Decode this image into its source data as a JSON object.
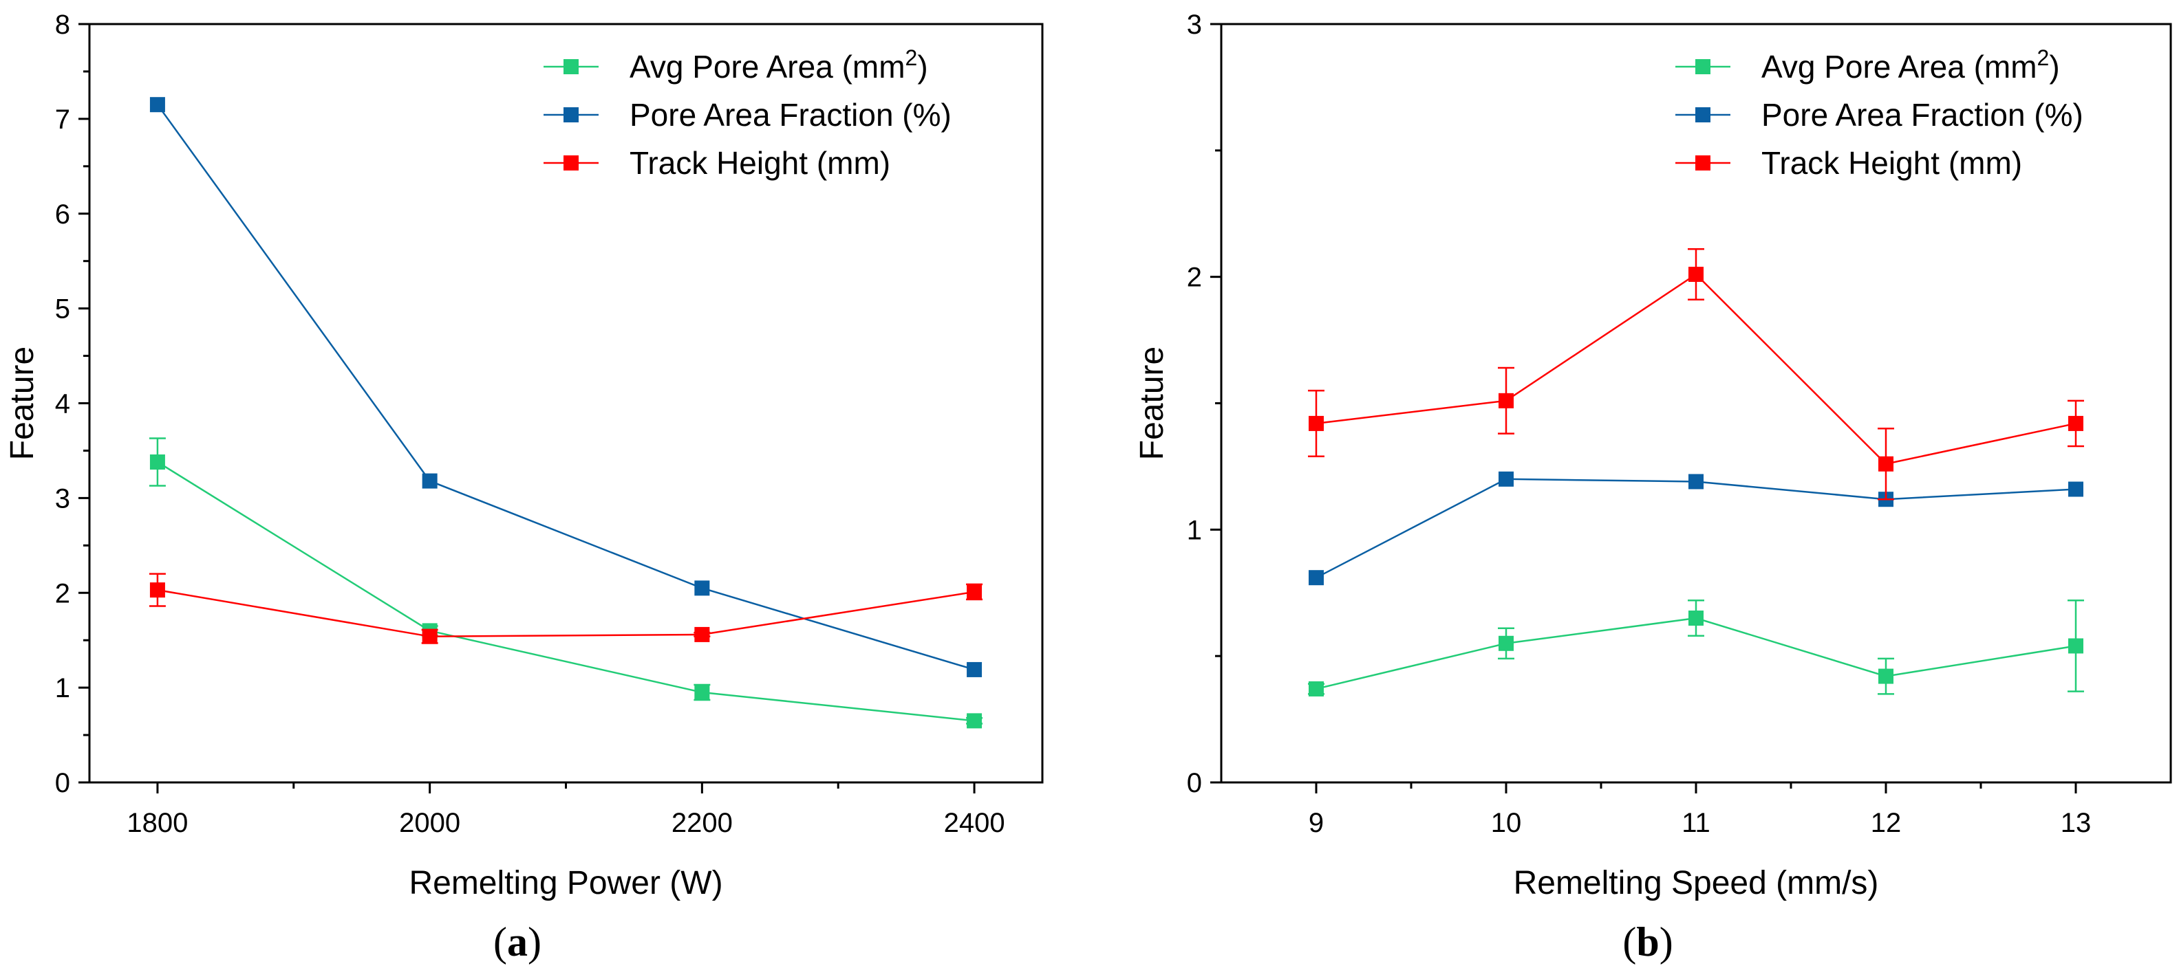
{
  "colors": {
    "avg_pore_area": "#22cc77",
    "pore_area_fraction": "#0a5fa3",
    "track_height": "#ff0000",
    "axis": "#000000"
  },
  "legend": [
    {
      "key": "avg_pore_area",
      "label": "Avg Pore Area (mm",
      "sup": "2",
      "suffix": ")"
    },
    {
      "key": "pore_area_fraction",
      "label": "Pore Area Fraction (%)",
      "sup": "",
      "suffix": ""
    },
    {
      "key": "track_height",
      "label": "Track Height (mm)",
      "sup": "",
      "suffix": ""
    }
  ],
  "chart_data": [
    {
      "id": "a",
      "type": "line",
      "panel_label": "a",
      "xlabel": "Remelting Power (W)",
      "ylabel": "Feature",
      "x": [
        1800,
        2000,
        2200,
        2400
      ],
      "xlim": [
        1750,
        2450
      ],
      "ylim": [
        0,
        8
      ],
      "xticks": [
        1800,
        2000,
        2200,
        2400
      ],
      "xminor": [
        1900,
        2100,
        2300
      ],
      "yticks": [
        0,
        1,
        2,
        3,
        4,
        5,
        6,
        7,
        8
      ],
      "yminor": [
        0.5,
        1.5,
        2.5,
        3.5,
        4.5,
        5.5,
        6.5,
        7.5
      ],
      "legend_position": "top-right",
      "series": [
        {
          "key": "avg_pore_area",
          "name": "Avg Pore Area (mm2)",
          "values": [
            3.38,
            1.6,
            0.95,
            0.65
          ],
          "errors": [
            0.25,
            0.05,
            0.08,
            0.03
          ]
        },
        {
          "key": "pore_area_fraction",
          "name": "Pore Area Fraction (%)",
          "values": [
            7.15,
            3.18,
            2.05,
            1.19
          ],
          "errors": [
            0,
            0,
            0,
            0
          ]
        },
        {
          "key": "track_height",
          "name": "Track Height (mm)",
          "values": [
            2.03,
            1.54,
            1.56,
            2.01
          ],
          "errors": [
            0.17,
            0.07,
            0.02,
            0.08
          ]
        }
      ]
    },
    {
      "id": "b",
      "type": "line",
      "panel_label": "b",
      "xlabel": "Remelting Speed (mm/s)",
      "ylabel": "Feature",
      "x": [
        9,
        10,
        11,
        12,
        13
      ],
      "xlim": [
        8.5,
        13.5
      ],
      "ylim": [
        0,
        3
      ],
      "xticks": [
        9,
        10,
        11,
        12,
        13
      ],
      "xminor": [
        9.5,
        10.5,
        11.5,
        12.5
      ],
      "yticks": [
        0,
        1,
        2,
        3
      ],
      "yminor": [
        0.5,
        1.5,
        2.5
      ],
      "legend_position": "top-right",
      "series": [
        {
          "key": "avg_pore_area",
          "name": "Avg Pore Area (mm2)",
          "values": [
            0.37,
            0.55,
            0.65,
            0.42,
            0.54
          ],
          "errors": [
            0.02,
            0.06,
            0.07,
            0.07,
            0.18
          ]
        },
        {
          "key": "pore_area_fraction",
          "name": "Pore Area Fraction (%)",
          "values": [
            0.81,
            1.2,
            1.19,
            1.12,
            1.16
          ],
          "errors": [
            0,
            0,
            0,
            0,
            0
          ]
        },
        {
          "key": "track_height",
          "name": "Track Height (mm)",
          "values": [
            1.42,
            1.51,
            2.01,
            1.26,
            1.42
          ],
          "errors": [
            0.13,
            0.13,
            0.1,
            0.14,
            0.09
          ]
        }
      ]
    }
  ]
}
